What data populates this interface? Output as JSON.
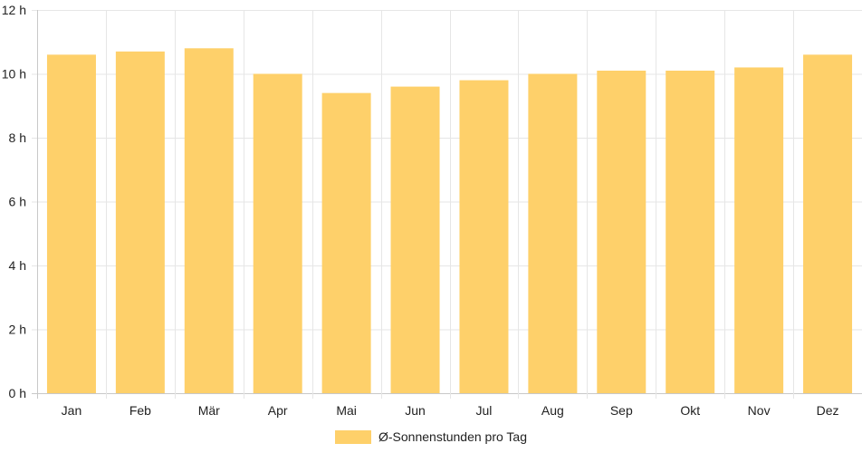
{
  "chart_data": {
    "type": "bar",
    "categories": [
      "Jan",
      "Feb",
      "Mär",
      "Apr",
      "Mai",
      "Jun",
      "Jul",
      "Aug",
      "Sep",
      "Okt",
      "Nov",
      "Dez"
    ],
    "series": [
      {
        "name": "Ø-Sonnenstunden pro Tag",
        "values": [
          10.6,
          10.7,
          10.8,
          10.0,
          9.4,
          9.6,
          9.8,
          10.0,
          10.1,
          10.1,
          10.2,
          10.6
        ],
        "color": "#fed06a"
      }
    ],
    "ylim": [
      0,
      12
    ],
    "yticks": [
      0,
      2,
      4,
      6,
      8,
      10,
      12
    ],
    "y_tick_suffix": " h",
    "grid": true,
    "legend_position": "bottom",
    "grid_color": "#e6e6e6",
    "axis_color": "#c8c8c8"
  }
}
